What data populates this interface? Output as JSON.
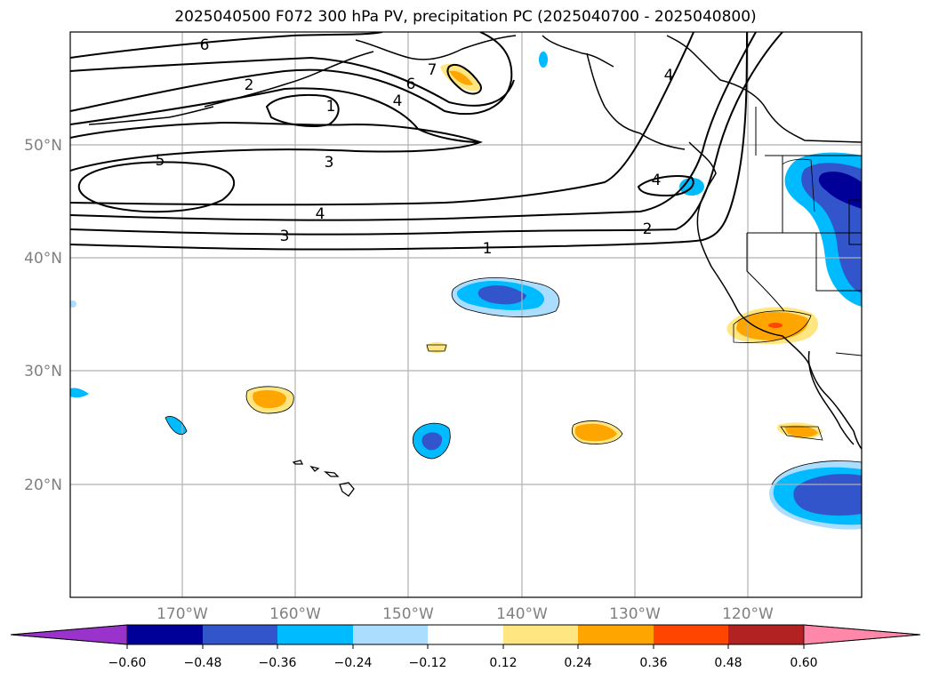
{
  "title": "2025040500 F072 300 hPa PV, precipitation PC (2025040700 - 2025040800)",
  "map": {
    "lat_labels": [
      "50°N",
      "40°N",
      "30°N",
      "20°N"
    ],
    "lon_labels": [
      "170°W",
      "160°W",
      "150°W",
      "140°W",
      "130°W",
      "120°W"
    ],
    "contour_labels": [
      "6",
      "2",
      "1",
      "7",
      "6",
      "4",
      "5",
      "3",
      "4",
      "3",
      "4",
      "2",
      "1",
      "4"
    ]
  },
  "colorbar": {
    "ticks": [
      "−0.60",
      "−0.48",
      "−0.36",
      "−0.24",
      "−0.12",
      "0.12",
      "0.24",
      "0.36",
      "0.48",
      "0.60"
    ],
    "colors": [
      "#9933cc",
      "#000099",
      "#3355cc",
      "#00bbff",
      "#aaddff",
      "#ffffff",
      "#ffe680",
      "#ffa500",
      "#ff4500",
      "#b22222",
      "#ff88aa"
    ]
  }
}
